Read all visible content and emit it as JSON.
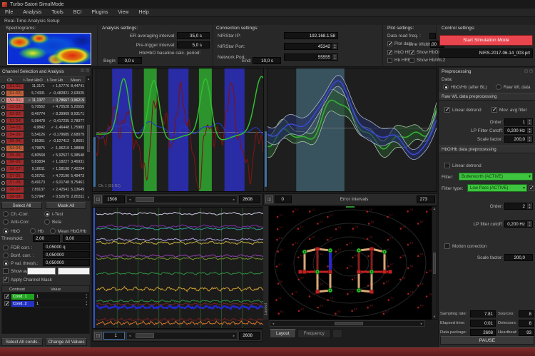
{
  "window": {
    "title": "Turbo-Satori SimulMode",
    "subtitle": "Real-Time Analysis Setup"
  },
  "menu": {
    "items": [
      "File",
      "Analysis",
      "Tools",
      "BCI",
      "Plugins",
      "View",
      "Help"
    ]
  },
  "icons": {
    "check": "✓",
    "up": "▲",
    "down": "▼",
    "left": "◄",
    "right": "►",
    "dd": "▾",
    "panel_a": "◱",
    "panel_b": "◳",
    "opts": "◫"
  },
  "spectrograms": {
    "label": "Spectrograms:"
  },
  "analysis": {
    "title": "Analysis settings:",
    "er_label": "ER averaging interval:",
    "er_value": "35,0 s",
    "pre_label": "Pre-trigger interval:",
    "pre_value": "5,0 s",
    "baseline_label": "Hb/HbO baseline calc. period:",
    "begin_label": "Begin:",
    "begin_value": "0,0 s",
    "end_label": "End:",
    "end_value": "10,0 s"
  },
  "connection": {
    "title": "Connection settings:",
    "rows": [
      {
        "label": "NIRStar IP:",
        "value": "192.168.1.58",
        "spin": false
      },
      {
        "label": "NIRStar Port:",
        "value": "45342",
        "spin": true
      },
      {
        "label": "Network Port:",
        "value": "55555",
        "spin": true
      }
    ]
  },
  "plot": {
    "title": "Plot settings:",
    "freq_label": "Data read freq. :",
    "line_width_label": "Line Width:",
    "line_width_value": "2,00",
    "checks": [
      {
        "label": "Plot data",
        "on": true
      },
      {
        "label": "HbO HRF",
        "on": true
      },
      {
        "label": "Hb HRF",
        "on": false
      },
      {
        "label": "Show HbO/WL1",
        "on": true
      },
      {
        "label": "Show Hb/WL2",
        "on": false
      }
    ]
  },
  "control": {
    "title": "Control settings:",
    "start_button": "Start Simulation Mode",
    "prt_file": "NIRS-2017-06-14_003.prt"
  },
  "channel_panel": {
    "title": "Channel Selection and Analysis",
    "columns": [
      "Ch.",
      "t-Test HbO",
      "t-Test Hb",
      "Mean"
    ],
    "select_all": "Select All",
    "mask_all": "Mask All",
    "rows": [
      {
        "ch": "(S1-D1)",
        "hbo": "11,3171",
        "hb": "1,57776",
        "mean": "8,44741"
      },
      {
        "ch": "(S1-D2)",
        "hbo": "5,74331",
        "hb": "-0,482821",
        "mean": "2,63025",
        "chip": "lite"
      },
      {
        "ch": "(S2-D1)",
        "hbo": "11,1377",
        "hb": "0,78667",
        "mean": "0,96219",
        "selected": true,
        "hbo_check": true
      },
      {
        "ch": "(S2-D3)",
        "hbo": "5,70562",
        "hb": "4,70528",
        "mean": "5,20555"
      },
      {
        "ch": "(S3-D2)",
        "hbo": "8,46774",
        "hb": "8,39969",
        "mean": "8,93171"
      },
      {
        "ch": "(S3-D4)",
        "hbo": "5,98478",
        "hb": "-0,417235",
        "mean": "2,78077"
      },
      {
        "ch": "(S4-D3)",
        "hbo": "4,9842",
        "hb": "-1,46448",
        "mean": "1,75983"
      },
      {
        "ch": "(S4-D5)",
        "hbo": "5,54126",
        "hb": "-0,179685",
        "mean": "2,68079"
      },
      {
        "ch": "(S5-D4)",
        "hbo": "7,85361",
        "hb": "-0,527412",
        "mean": "3,8601"
      },
      {
        "ch": "(S4-D4)",
        "hbo": "4,79875",
        "hb": "-1,96219",
        "mean": "1,38898",
        "chip": "lite"
      },
      {
        "ch": "(S5-D6)",
        "hbo": "6,80568",
        "hb": "5,92527",
        "mean": "6,38548"
      },
      {
        "ch": "(S6-D5)",
        "hbo": "5,83834",
        "hb": "1,18227",
        "mean": "3,46931"
      },
      {
        "ch": "(S6-D7)",
        "hbo": "9,18011",
        "hb": "1,58198",
        "mean": "7,42204"
      },
      {
        "ch": "(S7-D6)",
        "hbo": "6,26751",
        "hb": "4,72196",
        "mean": "5,49473"
      },
      {
        "ch": "(S7-D8)",
        "hbo": "8,49173",
        "hb": "6,01748",
        "mean": "8,75461"
      },
      {
        "ch": "(S8-D7)",
        "hbo": "7,89137",
        "hb": "2,42541",
        "mean": "5,13649"
      },
      {
        "ch": "(S8-D8)",
        "hbo": "5,37947",
        "hb": "0,52675",
        "mean": "2,85311"
      }
    ]
  },
  "controls": {
    "mode1": [
      {
        "label": "Ch.-Corr.",
        "on": false
      },
      {
        "label": "t-Test",
        "on": true
      }
    ],
    "mode2": [
      {
        "label": "Anti-Corr.",
        "on": false
      },
      {
        "label": "Beta",
        "on": false
      }
    ],
    "signal": [
      {
        "label": "HbO",
        "on": true
      },
      {
        "label": "Hb",
        "on": false
      },
      {
        "label": "Mean HbO/Hb",
        "on": false
      }
    ],
    "threshold_label": "Threshold:",
    "threshold_min": "2,00",
    "threshold_max": "8,00",
    "stat_rows": [
      {
        "label": "FDR corr. :",
        "value": "0,05000 q",
        "on": false
      },
      {
        "label": "Bonf. corr. :",
        "value": "0,050000",
        "on": false
      },
      {
        "label": "P val. thresh.:",
        "value": "0,050000",
        "on": true
      }
    ],
    "show_avg_label": "Show avg.",
    "apply_mask_label": "Apply Channel Mask",
    "apply_mask_on": true
  },
  "contrast": {
    "columns": [
      "Contrast",
      "Value"
    ],
    "rows": [
      {
        "name": "Cond. 1",
        "value": "1",
        "color": "#1fa41f"
      },
      {
        "name": "Cond. 2",
        "value": "1",
        "color": "#2433c4"
      }
    ],
    "select_all": "Select All conds.",
    "change_all": "Change All Values"
  },
  "mid_top_bar": {
    "start": "1508",
    "end": "2608"
  },
  "mid_bottom_bar": {
    "start": "1",
    "end": "2608"
  },
  "er_bar": {
    "start": "0",
    "label": "Error Intervals",
    "end": "273"
  },
  "montage": {
    "side_label": "Layout",
    "tabs": [
      {
        "label": "Layout",
        "active": true
      },
      {
        "label": "Frequency",
        "active": false
      }
    ]
  },
  "mid_top_chart": {
    "caption": "Ch: 1 (S1-D1)"
  },
  "preprocessing": {
    "title": "Preprocessing",
    "data_label": "Data:",
    "data_options": [
      {
        "label": "HbO/Hb (after BL)",
        "on": true
      },
      {
        "label": "Raw WL data",
        "on": false
      }
    ],
    "raw_section": "Raw WL data preprocessing",
    "raw_checks": [
      {
        "label": "Linear detrend",
        "on": true
      },
      {
        "label": "Mov. avg filter",
        "on": true
      }
    ],
    "raw_fields": [
      {
        "label": "Order:",
        "value": "1"
      },
      {
        "label": "LP Filter Cutoff:",
        "value": "0,200 Hz"
      },
      {
        "label": "Scale factor:",
        "value": "200,0"
      }
    ],
    "hbo_section": "HbO/Hb data preprocessing",
    "hbo_detrend": {
      "label": "Linear detrend",
      "on": false
    },
    "filter_label": "Filter:",
    "filter_value": "Butterworth (ACTIVE)",
    "filter_type_label": "Filter type:",
    "filter_type_value": "Low Pass (ACTIVE)",
    "filter_type_check": true,
    "hbo_fields": [
      {
        "label": "Order:",
        "value": "2"
      },
      {
        "label": "LP filter cutoff:",
        "value": "0,200 Hz"
      }
    ],
    "motion": {
      "label": "Motion correction",
      "on": false
    },
    "scale_label": "Scale factor:",
    "scale_value": "200,0"
  },
  "stats_rows": [
    {
      "l1": "Sampling rate:",
      "v1": "7.81",
      "l2": "Sources:",
      "v2": "8"
    },
    {
      "l1": "Elapsed time:",
      "v1": "0:01",
      "l2": "Detectors:",
      "v2": "8"
    },
    {
      "l1": "Data package:",
      "v1": "2608",
      "l2": "Heartbeat:",
      "v2": "93"
    }
  ],
  "pause_label": "PAUSE",
  "graphics": {
    "band_blue": "#2a2eb0",
    "band_green": "#2f9e2f",
    "er_band": "#3b5965",
    "trial_bands": [
      [
        0.095,
        0.215,
        "b"
      ],
      [
        0.285,
        0.362,
        "g"
      ],
      [
        0.432,
        0.552,
        "b"
      ],
      [
        0.615,
        0.692,
        "g"
      ],
      [
        0.768,
        0.888,
        "b"
      ]
    ],
    "trace_red": "#7c1414",
    "trace_green": "#2fbf2f",
    "trace_blue": "#2637c4",
    "er_green": "#34b134",
    "er_green_env": "#a9c4a9",
    "er_green_fill": "#27512c",
    "er_blue": "#3948d2",
    "er_blue_env": "#a9b2c9",
    "er_blue_fill": "#232d60",
    "raw_traces": [
      [
        0.05,
        "#cdcde4",
        2.0
      ],
      [
        0.155,
        "#7a2fa4",
        2.2
      ],
      [
        0.175,
        "#2f9f95",
        1.8
      ],
      [
        0.265,
        "#b2a2dc",
        2.0
      ],
      [
        0.292,
        "#c6b03e",
        2.4
      ],
      [
        0.4,
        "#8a3fa8",
        2.0
      ],
      [
        0.422,
        "#6f8f30",
        1.8
      ],
      [
        0.545,
        "#2f8f3f",
        2.0
      ],
      [
        0.675,
        "#d0a030",
        3.4
      ],
      [
        0.775,
        "#2f8f3f",
        1.8
      ],
      [
        0.8,
        "#7a2020",
        2.0
      ],
      [
        0.826,
        "#2228c8",
        2.6
      ],
      [
        0.93,
        "#7a2020",
        2.2
      ],
      [
        0.958,
        "#d2742a",
        3.0
      ]
    ]
  }
}
